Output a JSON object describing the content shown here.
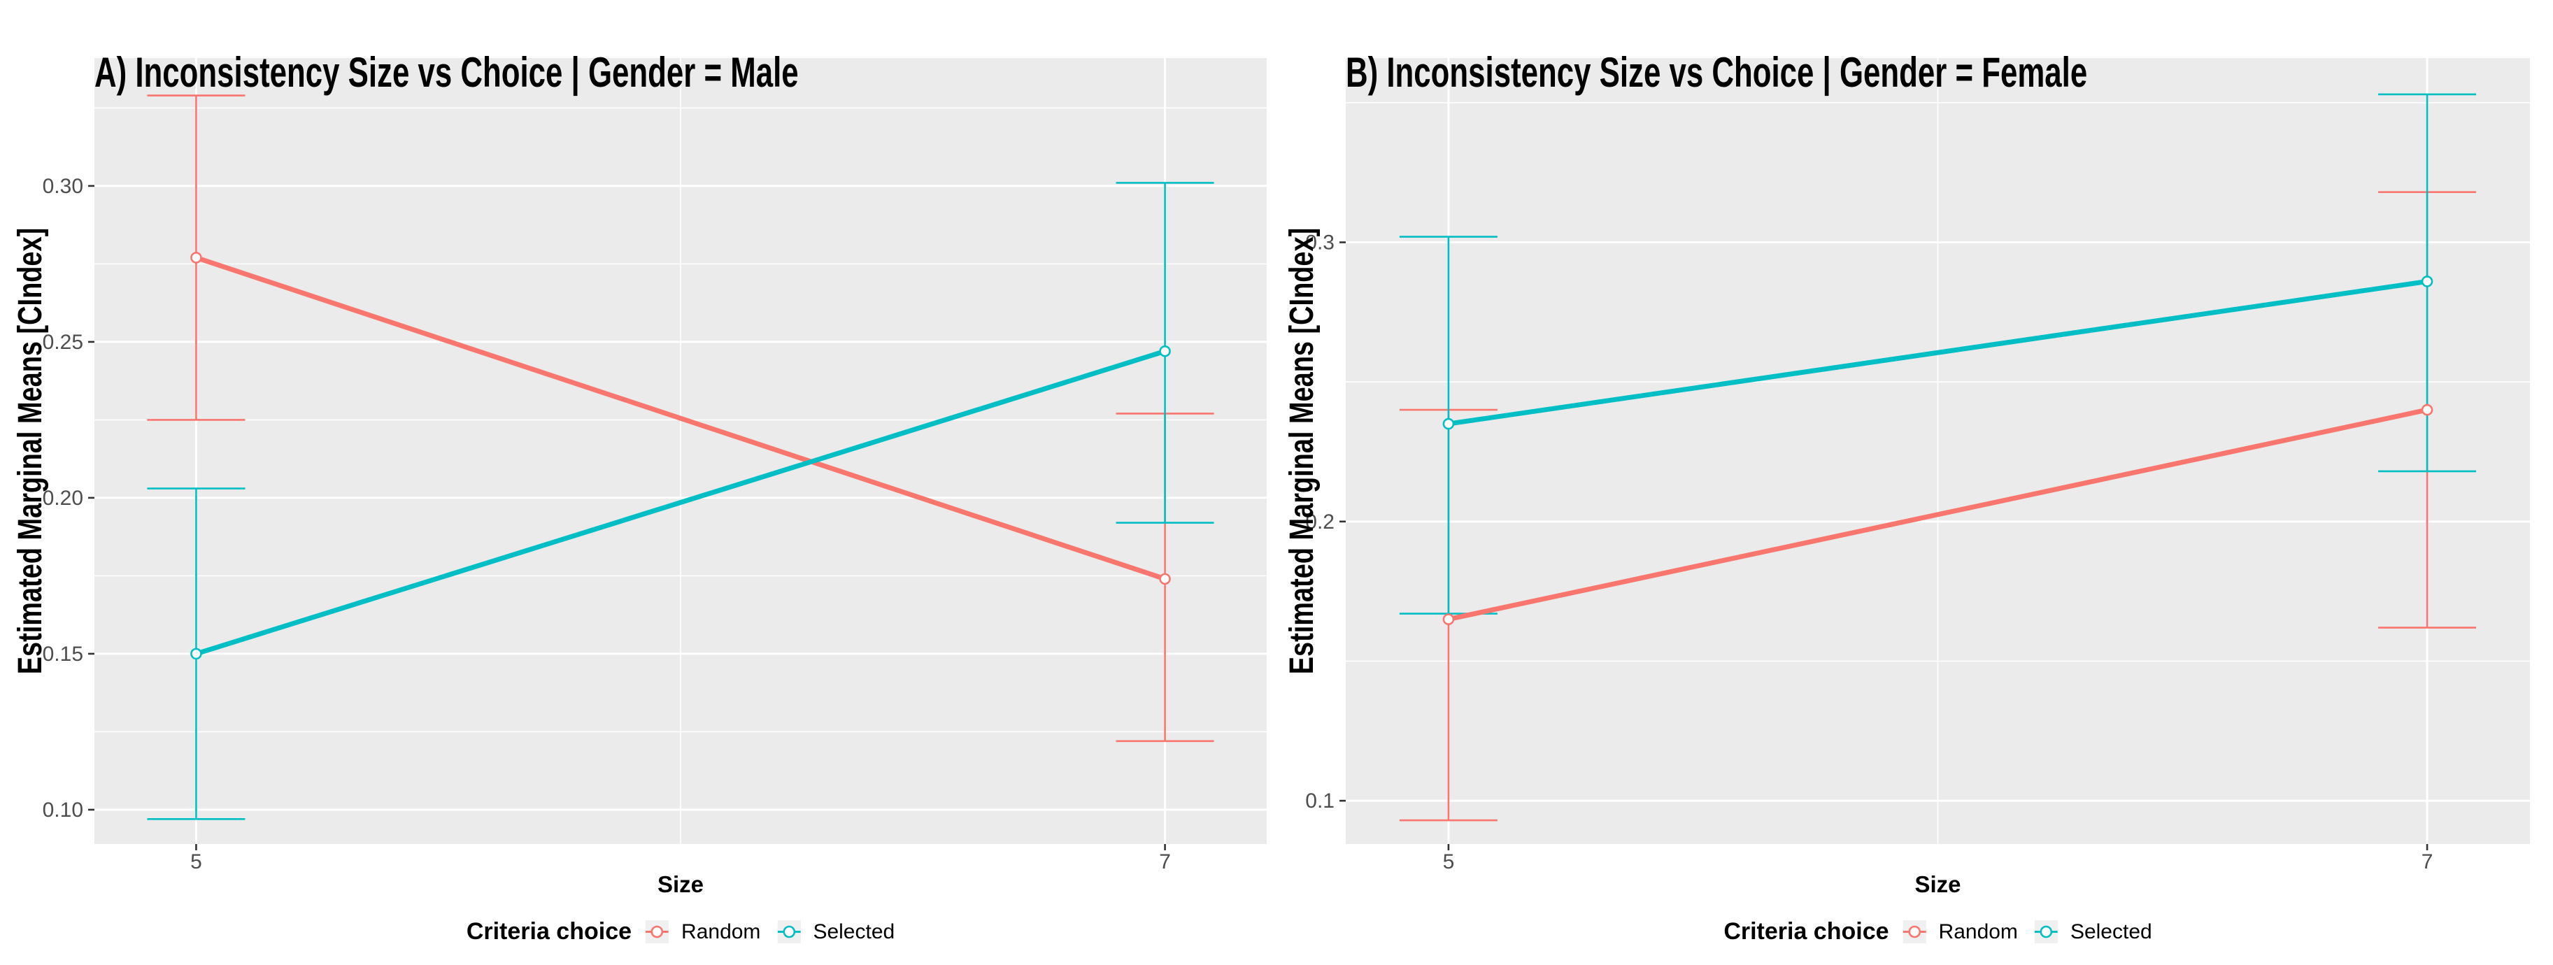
{
  "styles": {
    "panel_bg": "#EBEBEB",
    "grid_color": "#FFFFFF",
    "axis_tick_color": "#333333",
    "tick_label_color": "#4D4D4D",
    "random_color": "#F8766D",
    "selected_color": "#00BFC4",
    "legend_key_bg": "#F0F0F0",
    "text_color": "#000000"
  },
  "chart_data": [
    {
      "type": "line",
      "title": "A) Inconsistency Size vs Choice | Gender = Male",
      "xlabel": "Size",
      "ylabel": "Estimated Marginal Means [CIndex]",
      "legend_title": "Criteria choice",
      "legend_position": "bottom",
      "grid": true,
      "x": [
        5,
        7
      ],
      "x_tick_labels": [
        "5",
        "7"
      ],
      "x_domain": [
        4.79,
        7.21
      ],
      "x_minor_ticks": [
        6
      ],
      "y_ticks": [
        0.1,
        0.15,
        0.2,
        0.25,
        0.3
      ],
      "y_tick_labels": [
        "0.10",
        "0.15",
        "0.20",
        "0.25",
        "0.30"
      ],
      "y_minor_ticks": [
        0.125,
        0.175,
        0.225,
        0.275,
        0.325
      ],
      "y_domain": [
        0.089,
        0.341
      ],
      "series": [
        {
          "name": "Random",
          "color": "#F8766D",
          "means": [
            0.277,
            0.174
          ],
          "ci_low": [
            0.225,
            0.122
          ],
          "ci_high": [
            0.329,
            0.227
          ]
        },
        {
          "name": "Selected",
          "color": "#00BFC4",
          "means": [
            0.15,
            0.247
          ],
          "ci_low": [
            0.097,
            0.192
          ],
          "ci_high": [
            0.203,
            0.301
          ]
        }
      ]
    },
    {
      "type": "line",
      "title": "B) Inconsistency Size vs Choice | Gender = Female",
      "xlabel": "Size",
      "ylabel": "Estimated Marginal Means [CIndex]",
      "legend_title": "Criteria choice",
      "legend_position": "bottom",
      "grid": true,
      "x": [
        5,
        7
      ],
      "x_tick_labels": [
        "5",
        "7"
      ],
      "x_domain": [
        4.79,
        7.21
      ],
      "x_minor_ticks": [
        6
      ],
      "y_ticks": [
        0.1,
        0.2,
        0.3
      ],
      "y_tick_labels": [
        "0.1",
        "0.2",
        "0.3"
      ],
      "y_minor_ticks": [
        0.15,
        0.25,
        0.35
      ],
      "y_domain": [
        0.0845,
        0.366
      ],
      "series": [
        {
          "name": "Random",
          "color": "#F8766D",
          "means": [
            0.165,
            0.24
          ],
          "ci_low": [
            0.093,
            0.162
          ],
          "ci_high": [
            0.24,
            0.318
          ]
        },
        {
          "name": "Selected",
          "color": "#00BFC4",
          "means": [
            0.235,
            0.286
          ],
          "ci_low": [
            0.167,
            0.218
          ],
          "ci_high": [
            0.302,
            0.353
          ]
        }
      ]
    }
  ]
}
